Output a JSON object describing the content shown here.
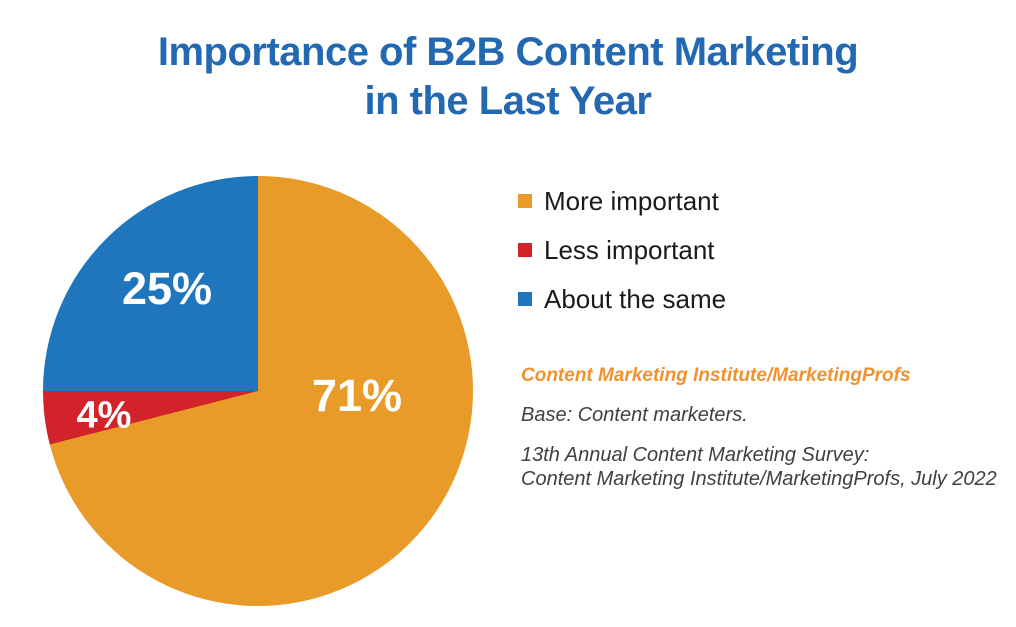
{
  "title": {
    "line1": "Importance of B2B Content Marketing",
    "line2": "in the Last Year"
  },
  "chart_data": {
    "type": "pie",
    "title": "Importance of B2B Content Marketing in the Last Year",
    "categories": [
      "More important",
      "Less important",
      "About the same"
    ],
    "values": [
      71,
      4,
      25
    ],
    "slice_labels": [
      "71%",
      "4%",
      "25%"
    ],
    "colors": [
      "#E89B28",
      "#D2232A",
      "#1F76BC"
    ],
    "start_angle_deg": 0,
    "direction": "clockwise",
    "legend_position": "right"
  },
  "theme": {
    "title_color": "#2268B2",
    "legend_text_color": "#1A1A1A",
    "source_brand_color": "#F0922D",
    "source_text_color": "#404040",
    "background": "#FFFFFF",
    "slice_label_color": "#FFFFFF"
  },
  "source": {
    "brand": "Content Marketing Institute/MarketingProfs",
    "base": "Base: Content marketers.",
    "survey_line1": "13th Annual Content Marketing Survey:",
    "survey_line2": "Content Marketing Institute/MarketingProfs, July 2022"
  }
}
